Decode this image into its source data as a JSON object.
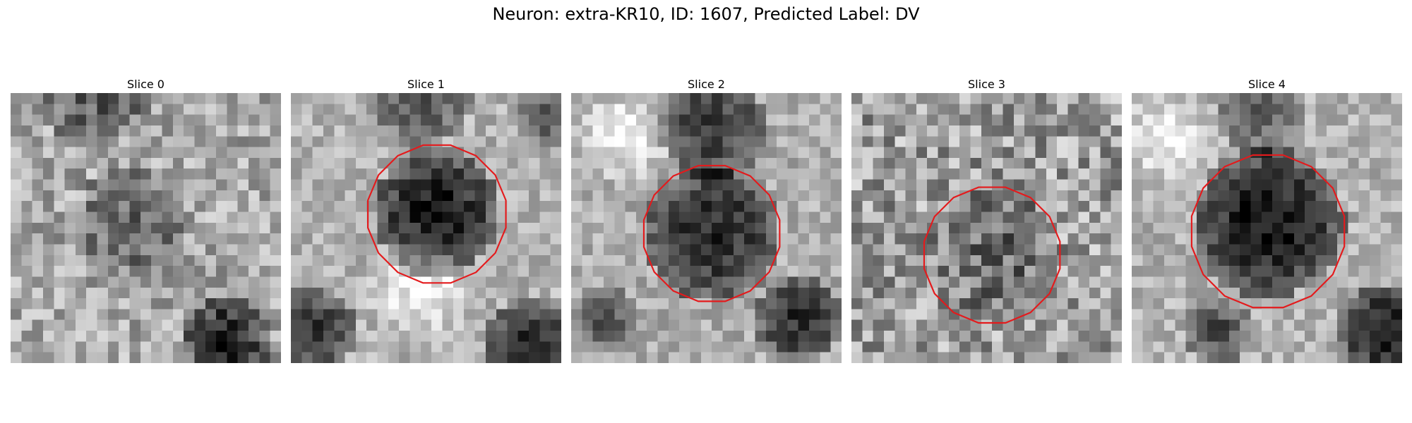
{
  "figure": {
    "title": "Neuron: extra-KR10, ID: 1607, Predicted Label: DV",
    "contour_color": "#e41a1c",
    "grid_cells": 25,
    "colormap": "gray"
  },
  "panels": [
    {
      "title": "Slice 0",
      "contour": null,
      "blobs": [
        {
          "cx": 11,
          "cy": 12,
          "r": 5,
          "depth": 0.28
        },
        {
          "cx": 20,
          "cy": 23,
          "r": 4,
          "depth": 0.55
        },
        {
          "cx": 8,
          "cy": 0,
          "r": 5,
          "depth": 0.3
        }
      ],
      "base": 0.66,
      "noise": 0.2,
      "seed": 11
    },
    {
      "title": "Slice 1",
      "contour": {
        "cx": 13.5,
        "cy": 11.2,
        "r": 6.5
      },
      "blobs": [
        {
          "cx": 13.5,
          "cy": 11,
          "r": 6,
          "depth": 0.6
        },
        {
          "cx": 2,
          "cy": 22,
          "r": 4,
          "depth": 0.5
        },
        {
          "cx": 22,
          "cy": 23,
          "r": 4,
          "depth": 0.55
        },
        {
          "cx": 12,
          "cy": 0,
          "r": 5,
          "depth": 0.35
        },
        {
          "cx": 24,
          "cy": 2,
          "r": 3,
          "depth": 0.35
        }
      ],
      "bright": [
        {
          "cx": 12,
          "cy": 18,
          "r": 6,
          "amt": 0.3
        }
      ],
      "base": 0.7,
      "noise": 0.14,
      "seed": 23
    },
    {
      "title": "Slice 2",
      "contour": {
        "cx": 13,
        "cy": 13,
        "r": 6.4
      },
      "blobs": [
        {
          "cx": 13,
          "cy": 13,
          "r": 6.5,
          "depth": 0.52
        },
        {
          "cx": 13,
          "cy": 3,
          "r": 5,
          "depth": 0.45
        },
        {
          "cx": 21,
          "cy": 21,
          "r": 4,
          "depth": 0.5
        },
        {
          "cx": 3,
          "cy": 21,
          "r": 3,
          "depth": 0.35
        }
      ],
      "bright": [
        {
          "cx": 5,
          "cy": 4,
          "r": 5,
          "amt": 0.35
        }
      ],
      "base": 0.68,
      "noise": 0.14,
      "seed": 37
    },
    {
      "title": "Slice 3",
      "contour": {
        "cx": 13,
        "cy": 15,
        "r": 6.4
      },
      "blobs": [
        {
          "cx": 13,
          "cy": 15,
          "r": 6,
          "depth": 0.2
        }
      ],
      "base": 0.62,
      "noise": 0.26,
      "seed": 51
    },
    {
      "title": "Slice 4",
      "contour": {
        "cx": 12.6,
        "cy": 12.8,
        "r": 7.2
      },
      "blobs": [
        {
          "cx": 12.6,
          "cy": 12,
          "r": 7,
          "depth": 0.62
        },
        {
          "cx": 23,
          "cy": 22,
          "r": 4,
          "depth": 0.6
        },
        {
          "cx": 12,
          "cy": 2,
          "r": 4,
          "depth": 0.3
        },
        {
          "cx": 8,
          "cy": 22,
          "r": 3,
          "depth": 0.4
        }
      ],
      "bright": [
        {
          "cx": 3,
          "cy": 4,
          "r": 5,
          "amt": 0.3
        }
      ],
      "base": 0.7,
      "noise": 0.14,
      "seed": 67
    }
  ]
}
